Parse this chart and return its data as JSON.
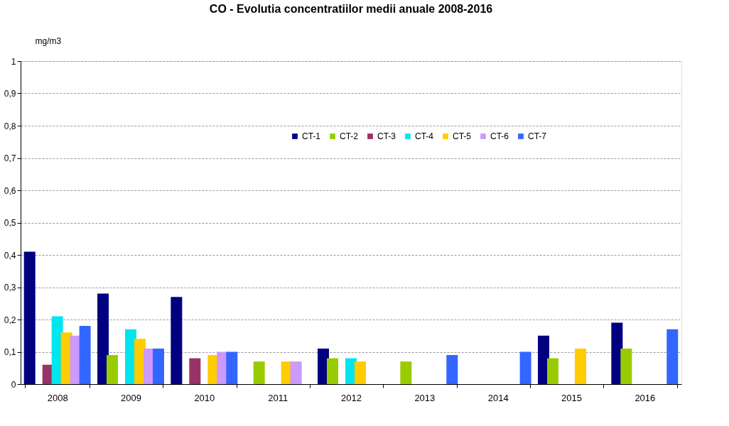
{
  "chart_data": {
    "type": "bar",
    "title": "CO - Evolutia concentratiilor medii anuale 2008-2016",
    "ylabel": "mg/m3",
    "categories": [
      "2008",
      "2009",
      "2010",
      "2011",
      "2012",
      "2013",
      "2014",
      "2015",
      "2016"
    ],
    "series": [
      {
        "name": "CT-1",
        "color": "#000080",
        "values": [
          0.41,
          0.28,
          0.27,
          null,
          0.11,
          null,
          null,
          0.15,
          0.19
        ]
      },
      {
        "name": "CT-2",
        "color": "#99cc00",
        "values": [
          null,
          0.09,
          null,
          0.07,
          0.08,
          0.07,
          null,
          0.08,
          0.11
        ]
      },
      {
        "name": "CT-3",
        "color": "#993366",
        "values": [
          0.06,
          null,
          0.08,
          null,
          null,
          null,
          null,
          null,
          null
        ]
      },
      {
        "name": "CT-4",
        "color": "#00e5ee",
        "values": [
          0.21,
          0.17,
          null,
          null,
          0.08,
          null,
          null,
          null,
          null
        ]
      },
      {
        "name": "CT-5",
        "color": "#ffcc00",
        "values": [
          0.16,
          0.14,
          0.09,
          0.07,
          0.07,
          null,
          null,
          0.11,
          null
        ]
      },
      {
        "name": "CT-6",
        "color": "#cc99ff",
        "values": [
          0.15,
          0.11,
          0.1,
          0.07,
          null,
          null,
          null,
          null,
          null
        ]
      },
      {
        "name": "CT-7",
        "color": "#3366ff",
        "values": [
          0.18,
          0.11,
          0.1,
          null,
          null,
          0.09,
          0.1,
          null,
          0.17
        ]
      }
    ],
    "ylim": [
      0,
      1
    ],
    "yticks": [
      0,
      {
        "value": 0.1,
        "label": "0,1"
      },
      {
        "value": 0.2,
        "label": "0,2"
      },
      {
        "value": 0.3,
        "label": "0,3"
      },
      {
        "value": 0.4,
        "label": "0,4"
      },
      {
        "value": 0.5,
        "label": "0,5"
      },
      {
        "value": 0.6,
        "label": "0,6"
      },
      {
        "value": 0.7,
        "label": "0,7"
      },
      {
        "value": 0.8,
        "label": "0,8"
      },
      {
        "value": 0.9,
        "label": "0,9"
      },
      1
    ],
    "grid": "y",
    "legend": "top right"
  }
}
